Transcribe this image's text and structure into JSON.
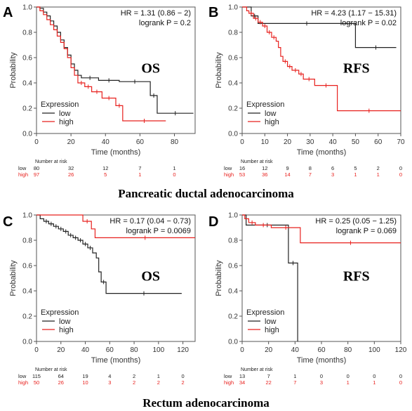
{
  "colors": {
    "low": "#222222",
    "high": "#e8211e"
  },
  "figure": {
    "row1_caption": "Pancreatic ductal adenocarcinoma",
    "row2_caption": "Rectum adenocarcinoma"
  },
  "chart_data": [
    {
      "type": "line",
      "panel_label": "A",
      "overlay": "OS",
      "ylabel": "Probability",
      "xlabel": "Time (months)",
      "xlim": [
        0,
        92
      ],
      "ylim": [
        0,
        1
      ],
      "xticks": [
        0,
        20,
        40,
        60,
        80
      ],
      "yticks": [
        0.0,
        0.2,
        0.4,
        0.6,
        0.8,
        1.0
      ],
      "stats": {
        "hr": "HR = 1.31 (0.86 − 2)",
        "logrank": "logrank P = 0.2"
      },
      "legend": {
        "title": "Expression",
        "placement": "bottom-left",
        "labels": [
          "low",
          "high"
        ]
      },
      "series": [
        {
          "name": "low",
          "steps": [
            [
              0,
              1
            ],
            [
              2,
              0.99
            ],
            [
              4,
              0.96
            ],
            [
              6,
              0.93
            ],
            [
              8,
              0.89
            ],
            [
              10,
              0.85
            ],
            [
              12,
              0.8
            ],
            [
              14,
              0.74
            ],
            [
              16,
              0.68
            ],
            [
              18,
              0.62
            ],
            [
              20,
              0.55
            ],
            [
              22,
              0.5
            ],
            [
              24,
              0.46
            ],
            [
              26,
              0.44
            ],
            [
              36,
              0.42
            ],
            [
              48,
              0.41
            ],
            [
              66,
              0.3
            ],
            [
              70,
              0.16
            ],
            [
              91,
              0.16
            ]
          ]
        },
        {
          "name": "high",
          "steps": [
            [
              0,
              1
            ],
            [
              2,
              0.97
            ],
            [
              4,
              0.94
            ],
            [
              6,
              0.9
            ],
            [
              8,
              0.86
            ],
            [
              10,
              0.82
            ],
            [
              12,
              0.77
            ],
            [
              14,
              0.72
            ],
            [
              16,
              0.67
            ],
            [
              18,
              0.6
            ],
            [
              20,
              0.52
            ],
            [
              22,
              0.46
            ],
            [
              24,
              0.4
            ],
            [
              28,
              0.37
            ],
            [
              32,
              0.33
            ],
            [
              38,
              0.28
            ],
            [
              46,
              0.22
            ],
            [
              50,
              0.1
            ],
            [
              75,
              0.1
            ]
          ]
        }
      ],
      "risk_table": {
        "title": "Number at risk",
        "rows": [
          {
            "label": "low",
            "values": [
              "80",
              "32",
              "12",
              "7",
              "1"
            ]
          },
          {
            "label": "high",
            "values": [
              "97",
              "26",
              "5",
              "1",
              "0"
            ]
          }
        ]
      }
    },
    {
      "type": "line",
      "panel_label": "B",
      "overlay": "RFS",
      "ylabel": "Probability",
      "xlabel": "Time (months)",
      "xlim": [
        0,
        70
      ],
      "ylim": [
        0,
        1
      ],
      "xticks": [
        0,
        10,
        20,
        30,
        40,
        50,
        60,
        70
      ],
      "yticks": [
        0.0,
        0.2,
        0.4,
        0.6,
        0.8,
        1.0
      ],
      "stats": {
        "hr": "HR = 4.23 (1.17 − 15.31)",
        "logrank": "logrank P = 0.02"
      },
      "legend": {
        "title": "Expression",
        "placement": "bottom-left",
        "labels": [
          "low",
          "high"
        ]
      },
      "series": [
        {
          "name": "low",
          "steps": [
            [
              0,
              1
            ],
            [
              4,
              0.93
            ],
            [
              7,
              0.87
            ],
            [
              50,
              0.68
            ],
            [
              68,
              0.68
            ]
          ]
        },
        {
          "name": "high",
          "steps": [
            [
              0,
              1
            ],
            [
              2,
              0.97
            ],
            [
              3,
              0.95
            ],
            [
              5,
              0.91
            ],
            [
              7,
              0.88
            ],
            [
              9,
              0.85
            ],
            [
              11,
              0.8
            ],
            [
              13,
              0.76
            ],
            [
              15,
              0.73
            ],
            [
              16,
              0.68
            ],
            [
              17,
              0.61
            ],
            [
              18,
              0.57
            ],
            [
              20,
              0.53
            ],
            [
              22,
              0.5
            ],
            [
              25,
              0.47
            ],
            [
              27,
              0.43
            ],
            [
              32,
              0.38
            ],
            [
              42,
              0.18
            ],
            [
              70,
              0.18
            ]
          ]
        }
      ],
      "risk_table": {
        "title": "Number at risk",
        "rows": [
          {
            "label": "low",
            "values": [
              "16",
              "12",
              "9",
              "8",
              "6",
              "5",
              "2",
              "0"
            ]
          },
          {
            "label": "high",
            "values": [
              "53",
              "36",
              "14",
              "7",
              "3",
              "1",
              "1",
              "0"
            ]
          }
        ]
      }
    },
    {
      "type": "line",
      "panel_label": "C",
      "overlay": "OS",
      "ylabel": "Probability",
      "xlabel": "Time (months)",
      "xlim": [
        0,
        130
      ],
      "ylim": [
        0,
        1
      ],
      "xticks": [
        0,
        20,
        40,
        60,
        80,
        100,
        120
      ],
      "yticks": [
        0.0,
        0.2,
        0.4,
        0.6,
        0.8,
        1.0
      ],
      "stats": {
        "hr": "HR = 0.17 (0.04 − 0.73)",
        "logrank": "logrank P = 0.0069"
      },
      "legend": {
        "title": "Expression",
        "placement": "bottom-left",
        "labels": [
          "low",
          "high"
        ]
      },
      "series": [
        {
          "name": "low",
          "steps": [
            [
              0,
              1
            ],
            [
              3,
              0.97
            ],
            [
              6,
              0.95
            ],
            [
              10,
              0.93
            ],
            [
              14,
              0.91
            ],
            [
              18,
              0.89
            ],
            [
              22,
              0.87
            ],
            [
              26,
              0.84
            ],
            [
              30,
              0.82
            ],
            [
              34,
              0.8
            ],
            [
              38,
              0.77
            ],
            [
              42,
              0.74
            ],
            [
              46,
              0.7
            ],
            [
              49,
              0.66
            ],
            [
              51,
              0.55
            ],
            [
              53,
              0.47
            ],
            [
              57,
              0.38
            ],
            [
              119,
              0.38
            ]
          ]
        },
        {
          "name": "high",
          "steps": [
            [
              0,
              1
            ],
            [
              38,
              0.95
            ],
            [
              45,
              0.89
            ],
            [
              48,
              0.82
            ],
            [
              130,
              0.82
            ]
          ]
        }
      ],
      "risk_table": {
        "title": "Number at risk",
        "rows": [
          {
            "label": "low",
            "values": [
              "115",
              "64",
              "19",
              "4",
              "2",
              "1",
              "0"
            ]
          },
          {
            "label": "high",
            "values": [
              "50",
              "26",
              "10",
              "3",
              "2",
              "2",
              "2"
            ]
          }
        ]
      }
    },
    {
      "type": "line",
      "panel_label": "D",
      "overlay": "RFS",
      "ylabel": "Probability",
      "xlabel": "Time (months)",
      "xlim": [
        0,
        120
      ],
      "ylim": [
        0,
        1
      ],
      "xticks": [
        0,
        20,
        40,
        60,
        80,
        100,
        120
      ],
      "yticks": [
        0.0,
        0.2,
        0.4,
        0.6,
        0.8,
        1.0
      ],
      "stats": {
        "hr": "HR = 0.25 (0.05 − 1.25)",
        "logrank": "logrank P = 0.069"
      },
      "legend": {
        "title": "Expression",
        "placement": "bottom-left",
        "labels": [
          "low",
          "high"
        ]
      },
      "series": [
        {
          "name": "low",
          "steps": [
            [
              0,
              1
            ],
            [
              3,
              0.92
            ],
            [
              35,
              0.62
            ],
            [
              42,
              0
            ],
            [
              42,
              0
            ]
          ]
        },
        {
          "name": "high",
          "steps": [
            [
              0,
              1
            ],
            [
              2,
              0.97
            ],
            [
              5,
              0.94
            ],
            [
              10,
              0.92
            ],
            [
              22,
              0.9
            ],
            [
              44,
              0.78
            ],
            [
              120,
              0.78
            ]
          ]
        }
      ],
      "risk_table": {
        "title": "Number at risk",
        "rows": [
          {
            "label": "low",
            "values": [
              "13",
              "7",
              "1",
              "0",
              "0",
              "0",
              "0"
            ]
          },
          {
            "label": "high",
            "values": [
              "34",
              "22",
              "7",
              "3",
              "1",
              "1",
              "0"
            ]
          }
        ]
      }
    }
  ]
}
